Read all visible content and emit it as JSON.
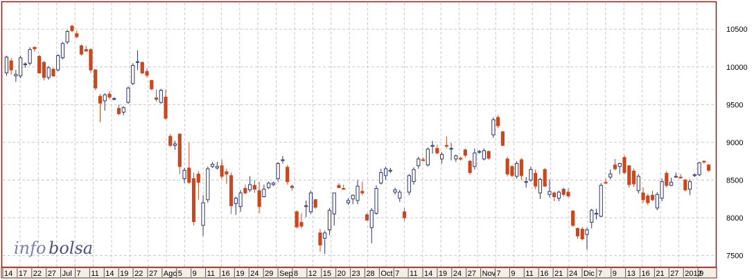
{
  "watermark": {
    "part1": "info",
    "part2": "bolsa"
  },
  "colors": {
    "up": "#2b3370",
    "down": "#c8481f",
    "frame": "#8b1a1a",
    "grid": "#c8c8c8",
    "axis_bg": "#f2efe4"
  },
  "chart_data": {
    "type": "candlestick",
    "grid": true,
    "ylim": [
      7350,
      10850
    ],
    "y_ticks": [
      7500,
      8000,
      8500,
      9000,
      9500,
      10000,
      10500
    ],
    "x_tick_labels": [
      "14",
      "17",
      "22",
      "27",
      "Jul",
      "7",
      "11",
      "14",
      "19",
      "22",
      "27",
      "Ago",
      "5",
      "9",
      "11",
      "16",
      "19",
      "24",
      "29",
      "Sep",
      "8",
      "12",
      "15",
      "20",
      "23",
      "28",
      "Oct",
      "7",
      "11",
      "14",
      "19",
      "24",
      "27",
      "Nov",
      "7",
      "9",
      "11",
      "16",
      "21",
      "24",
      "Dic",
      "7",
      "9",
      "13",
      "16",
      "21",
      "27",
      "2012",
      "9"
    ],
    "series": [
      {
        "values": [
          {
            "o": 9920,
            "h": 10150,
            "l": 9880,
            "c": 10130
          },
          {
            "o": 10080,
            "h": 10120,
            "l": 9900,
            "c": 9960
          },
          {
            "o": 9880,
            "h": 9960,
            "l": 9800,
            "c": 9900
          },
          {
            "o": 9880,
            "h": 10150,
            "l": 9850,
            "c": 10120
          },
          {
            "o": 10030,
            "h": 10060,
            "l": 9990,
            "c": 10040
          },
          {
            "o": 10050,
            "h": 10260,
            "l": 10020,
            "c": 10230
          },
          {
            "o": 10260,
            "h": 10270,
            "l": 10200,
            "c": 10240
          },
          {
            "o": 10140,
            "h": 10160,
            "l": 9910,
            "c": 9920
          },
          {
            "o": 10060,
            "h": 10080,
            "l": 9820,
            "c": 9860
          },
          {
            "o": 9860,
            "h": 10010,
            "l": 9830,
            "c": 9990
          },
          {
            "o": 9970,
            "h": 9990,
            "l": 9870,
            "c": 9880
          },
          {
            "o": 9960,
            "h": 10170,
            "l": 9940,
            "c": 10150
          },
          {
            "o": 10120,
            "h": 10330,
            "l": 10100,
            "c": 10310
          },
          {
            "o": 10330,
            "h": 10490,
            "l": 10300,
            "c": 10470
          },
          {
            "o": 10540,
            "h": 10560,
            "l": 10460,
            "c": 10480
          },
          {
            "o": 10440,
            "h": 10480,
            "l": 10380,
            "c": 10400
          },
          {
            "o": 10280,
            "h": 10300,
            "l": 10150,
            "c": 10170
          },
          {
            "o": 10230,
            "h": 10280,
            "l": 10200,
            "c": 10210
          },
          {
            "o": 10230,
            "h": 10250,
            "l": 9920,
            "c": 9960
          },
          {
            "o": 9960,
            "h": 9970,
            "l": 9690,
            "c": 9720
          },
          {
            "o": 9610,
            "h": 9640,
            "l": 9270,
            "c": 9520
          },
          {
            "o": 9550,
            "h": 9650,
            "l": 9420,
            "c": 9630
          },
          {
            "o": 9640,
            "h": 9680,
            "l": 9570,
            "c": 9600
          },
          {
            "o": 9580,
            "h": 9600,
            "l": 9560,
            "c": 9580
          },
          {
            "o": 9450,
            "h": 9500,
            "l": 9360,
            "c": 9380
          },
          {
            "o": 9400,
            "h": 9480,
            "l": 9360,
            "c": 9460
          },
          {
            "o": 9530,
            "h": 9740,
            "l": 9510,
            "c": 9720
          },
          {
            "o": 9780,
            "h": 10050,
            "l": 9760,
            "c": 10020
          },
          {
            "o": 10060,
            "h": 10220,
            "l": 9960,
            "c": 10070
          },
          {
            "o": 10060,
            "h": 10070,
            "l": 9900,
            "c": 9920
          },
          {
            "o": 9940,
            "h": 9980,
            "l": 9860,
            "c": 9890
          },
          {
            "o": 9820,
            "h": 9830,
            "l": 9690,
            "c": 9710
          },
          {
            "o": 9590,
            "h": 9700,
            "l": 9540,
            "c": 9570
          },
          {
            "o": 9530,
            "h": 9710,
            "l": 9510,
            "c": 9690
          },
          {
            "o": 9600,
            "h": 9700,
            "l": 9300,
            "c": 9320
          },
          {
            "o": 9080,
            "h": 9110,
            "l": 8940,
            "c": 8960
          },
          {
            "o": 8960,
            "h": 9020,
            "l": 8900,
            "c": 8980
          },
          {
            "o": 9110,
            "h": 9120,
            "l": 8580,
            "c": 8680
          },
          {
            "o": 8520,
            "h": 8660,
            "l": 8460,
            "c": 8630
          },
          {
            "o": 8660,
            "h": 9000,
            "l": 8450,
            "c": 8470
          },
          {
            "o": 8520,
            "h": 8600,
            "l": 7900,
            "c": 7950
          },
          {
            "o": 8580,
            "h": 8620,
            "l": 8240,
            "c": 8470
          },
          {
            "o": 7900,
            "h": 8300,
            "l": 7760,
            "c": 8200
          },
          {
            "o": 8240,
            "h": 8680,
            "l": 8200,
            "c": 8650
          },
          {
            "o": 8680,
            "h": 8740,
            "l": 8660,
            "c": 8710
          },
          {
            "o": 8660,
            "h": 8740,
            "l": 8640,
            "c": 8680
          },
          {
            "o": 8690,
            "h": 8770,
            "l": 8520,
            "c": 8550
          },
          {
            "o": 8610,
            "h": 8650,
            "l": 8450,
            "c": 8580
          },
          {
            "o": 8560,
            "h": 8600,
            "l": 8050,
            "c": 8160
          },
          {
            "o": 8190,
            "h": 8280,
            "l": 8040,
            "c": 8260
          },
          {
            "o": 8150,
            "h": 8370,
            "l": 8080,
            "c": 8330
          },
          {
            "o": 8390,
            "h": 8440,
            "l": 8310,
            "c": 8330
          },
          {
            "o": 8370,
            "h": 8550,
            "l": 8340,
            "c": 8440
          },
          {
            "o": 8430,
            "h": 8500,
            "l": 8330,
            "c": 8380
          },
          {
            "o": 8360,
            "h": 8480,
            "l": 8060,
            "c": 8150
          },
          {
            "o": 8280,
            "h": 8440,
            "l": 8270,
            "c": 8380
          },
          {
            "o": 8400,
            "h": 8480,
            "l": 8380,
            "c": 8460
          },
          {
            "o": 8440,
            "h": 8480,
            "l": 8420,
            "c": 8460
          },
          {
            "o": 8520,
            "h": 8740,
            "l": 8480,
            "c": 8720
          },
          {
            "o": 8760,
            "h": 8820,
            "l": 8720,
            "c": 8770
          },
          {
            "o": 8670,
            "h": 8700,
            "l": 8440,
            "c": 8480
          },
          {
            "o": 8420,
            "h": 8440,
            "l": 8360,
            "c": 8400
          },
          {
            "o": 8080,
            "h": 8100,
            "l": 7860,
            "c": 7880
          },
          {
            "o": 7940,
            "h": 8060,
            "l": 7860,
            "c": 7890
          },
          {
            "o": 8150,
            "h": 8230,
            "l": 8010,
            "c": 8160
          },
          {
            "o": 8080,
            "h": 8360,
            "l": 8050,
            "c": 8330
          },
          {
            "o": 8240,
            "h": 8250,
            "l": 8120,
            "c": 8140
          },
          {
            "o": 7800,
            "h": 7850,
            "l": 7550,
            "c": 7640
          },
          {
            "o": 7730,
            "h": 7830,
            "l": 7520,
            "c": 7800
          },
          {
            "o": 7840,
            "h": 8130,
            "l": 7770,
            "c": 8100
          },
          {
            "o": 8050,
            "h": 8320,
            "l": 7900,
            "c": 8330
          },
          {
            "o": 8430,
            "h": 8460,
            "l": 8390,
            "c": 8400
          },
          {
            "o": 8390,
            "h": 8440,
            "l": 8370,
            "c": 8380
          },
          {
            "o": 8200,
            "h": 8260,
            "l": 8170,
            "c": 8230
          },
          {
            "o": 8250,
            "h": 8310,
            "l": 8180,
            "c": 8300
          },
          {
            "o": 8230,
            "h": 8500,
            "l": 8180,
            "c": 8420
          },
          {
            "o": 8350,
            "h": 8480,
            "l": 8300,
            "c": 8330
          },
          {
            "o": 8040,
            "h": 8060,
            "l": 7960,
            "c": 7970
          },
          {
            "o": 7870,
            "h": 8130,
            "l": 7660,
            "c": 8100
          },
          {
            "o": 8060,
            "h": 8430,
            "l": 8040,
            "c": 8390
          },
          {
            "o": 8460,
            "h": 8650,
            "l": 8440,
            "c": 8600
          },
          {
            "o": 8560,
            "h": 8680,
            "l": 8500,
            "c": 8650
          },
          {
            "o": 8620,
            "h": 8660,
            "l": 8590,
            "c": 8630
          },
          {
            "o": 8340,
            "h": 8400,
            "l": 8310,
            "c": 8370
          },
          {
            "o": 8260,
            "h": 8370,
            "l": 8210,
            "c": 8340
          },
          {
            "o": 8080,
            "h": 8130,
            "l": 7960,
            "c": 8000
          },
          {
            "o": 8340,
            "h": 8580,
            "l": 8300,
            "c": 8560
          },
          {
            "o": 8480,
            "h": 8670,
            "l": 8440,
            "c": 8640
          },
          {
            "o": 8690,
            "h": 8810,
            "l": 8650,
            "c": 8780
          },
          {
            "o": 8770,
            "h": 8800,
            "l": 8750,
            "c": 8760
          },
          {
            "o": 8700,
            "h": 8930,
            "l": 8680,
            "c": 8910
          },
          {
            "o": 8950,
            "h": 9020,
            "l": 8850,
            "c": 8960
          },
          {
            "o": 8920,
            "h": 8970,
            "l": 8840,
            "c": 8860
          },
          {
            "o": 8780,
            "h": 8870,
            "l": 8720,
            "c": 8840
          },
          {
            "o": 8960,
            "h": 9080,
            "l": 8920,
            "c": 8950
          },
          {
            "o": 8910,
            "h": 8990,
            "l": 8760,
            "c": 8920
          },
          {
            "o": 8780,
            "h": 8840,
            "l": 8740,
            "c": 8820
          },
          {
            "o": 8790,
            "h": 8810,
            "l": 8760,
            "c": 8780
          },
          {
            "o": 8900,
            "h": 8920,
            "l": 8800,
            "c": 8830
          },
          {
            "o": 8750,
            "h": 8770,
            "l": 8570,
            "c": 8600
          },
          {
            "o": 8680,
            "h": 8920,
            "l": 8640,
            "c": 8860
          },
          {
            "o": 8870,
            "h": 8900,
            "l": 8850,
            "c": 8880
          },
          {
            "o": 8780,
            "h": 8920,
            "l": 8760,
            "c": 8890
          },
          {
            "o": 8880,
            "h": 8890,
            "l": 8770,
            "c": 8790
          },
          {
            "o": 9100,
            "h": 9330,
            "l": 9060,
            "c": 9300
          },
          {
            "o": 9330,
            "h": 9360,
            "l": 9190,
            "c": 9220
          },
          {
            "o": 9140,
            "h": 9150,
            "l": 8950,
            "c": 8960
          },
          {
            "o": 8780,
            "h": 8810,
            "l": 8550,
            "c": 8580
          },
          {
            "o": 8680,
            "h": 8700,
            "l": 8540,
            "c": 8560
          },
          {
            "o": 8550,
            "h": 8750,
            "l": 8520,
            "c": 8720
          },
          {
            "o": 8770,
            "h": 8790,
            "l": 8500,
            "c": 8560
          },
          {
            "o": 8470,
            "h": 8540,
            "l": 8400,
            "c": 8480
          },
          {
            "o": 8500,
            "h": 8680,
            "l": 8480,
            "c": 8640
          },
          {
            "o": 8590,
            "h": 8640,
            "l": 8380,
            "c": 8420
          },
          {
            "o": 8330,
            "h": 8530,
            "l": 8250,
            "c": 8510
          },
          {
            "o": 8640,
            "h": 8660,
            "l": 8410,
            "c": 8420
          },
          {
            "o": 8310,
            "h": 8510,
            "l": 8270,
            "c": 8350
          },
          {
            "o": 8330,
            "h": 8350,
            "l": 8220,
            "c": 8280
          },
          {
            "o": 8260,
            "h": 8360,
            "l": 8220,
            "c": 8340
          },
          {
            "o": 8380,
            "h": 8400,
            "l": 8280,
            "c": 8310
          },
          {
            "o": 8340,
            "h": 8390,
            "l": 8270,
            "c": 8290
          },
          {
            "o": 8090,
            "h": 8100,
            "l": 7880,
            "c": 7900
          },
          {
            "o": 7860,
            "h": 7870,
            "l": 7720,
            "c": 7760
          },
          {
            "o": 7850,
            "h": 7880,
            "l": 7700,
            "c": 7720
          },
          {
            "o": 7780,
            "h": 7870,
            "l": 7580,
            "c": 7840
          },
          {
            "o": 7940,
            "h": 8120,
            "l": 7860,
            "c": 8100
          },
          {
            "o": 8050,
            "h": 8120,
            "l": 7980,
            "c": 8060
          },
          {
            "o": 8020,
            "h": 8460,
            "l": 8010,
            "c": 8430
          },
          {
            "o": 8470,
            "h": 8520,
            "l": 8450,
            "c": 8460
          },
          {
            "o": 8540,
            "h": 8640,
            "l": 8510,
            "c": 8580
          },
          {
            "o": 8700,
            "h": 8780,
            "l": 8630,
            "c": 8650
          },
          {
            "o": 8680,
            "h": 8730,
            "l": 8580,
            "c": 8720
          },
          {
            "o": 8800,
            "h": 8830,
            "l": 8580,
            "c": 8600
          },
          {
            "o": 8690,
            "h": 8700,
            "l": 8400,
            "c": 8440
          },
          {
            "o": 8620,
            "h": 8650,
            "l": 8410,
            "c": 8450
          },
          {
            "o": 8360,
            "h": 8580,
            "l": 8320,
            "c": 8550
          },
          {
            "o": 8330,
            "h": 8400,
            "l": 8200,
            "c": 8240
          },
          {
            "o": 8290,
            "h": 8320,
            "l": 8170,
            "c": 8200
          },
          {
            "o": 8300,
            "h": 8360,
            "l": 8220,
            "c": 8240
          },
          {
            "o": 8130,
            "h": 8340,
            "l": 8100,
            "c": 8310
          },
          {
            "o": 8260,
            "h": 8520,
            "l": 8220,
            "c": 8480
          },
          {
            "o": 8590,
            "h": 8620,
            "l": 8400,
            "c": 8430
          },
          {
            "o": 8430,
            "h": 8530,
            "l": 8420,
            "c": 8470
          },
          {
            "o": 8550,
            "h": 8600,
            "l": 8530,
            "c": 8550
          },
          {
            "o": 8540,
            "h": 8580,
            "l": 8520,
            "c": 8530
          },
          {
            "o": 8500,
            "h": 8520,
            "l": 8350,
            "c": 8370
          },
          {
            "o": 8380,
            "h": 8510,
            "l": 8300,
            "c": 8480
          },
          {
            "o": 8560,
            "h": 8590,
            "l": 8540,
            "c": 8570
          },
          {
            "o": 8570,
            "h": 8740,
            "l": 8550,
            "c": 8730
          },
          {
            "o": 8750,
            "h": 8760,
            "l": 8720,
            "c": 8740
          },
          {
            "o": 8700,
            "h": 8710,
            "l": 8610,
            "c": 8630
          }
        ]
      }
    ]
  }
}
